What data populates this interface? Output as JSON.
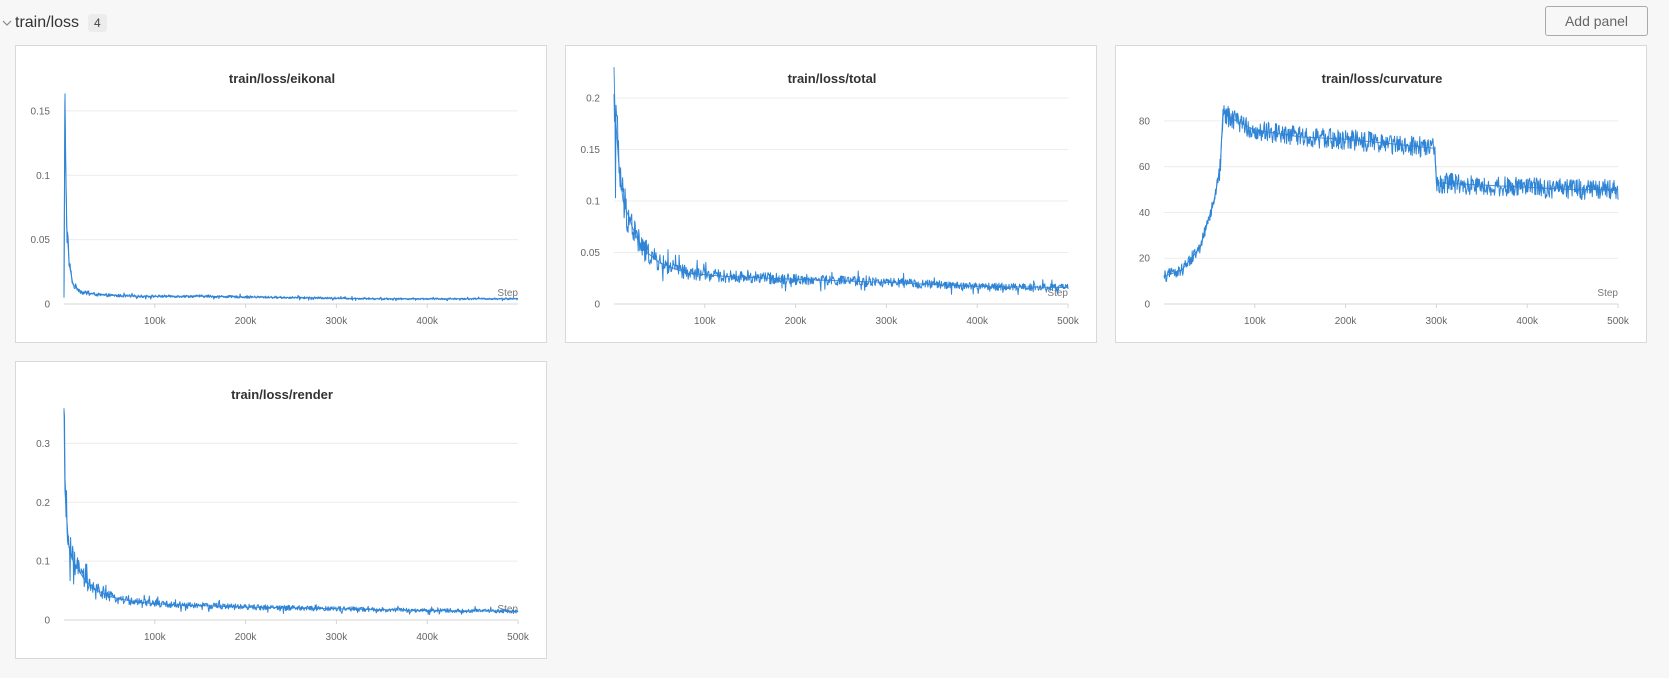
{
  "section": {
    "title": "train/loss",
    "count": "4",
    "add_panel_label": "Add panel"
  },
  "colors": {
    "series": "#2f84d6"
  },
  "chart_data": [
    {
      "type": "line",
      "title": "train/loss/eikonal",
      "xlabel": "Step",
      "xlim": [
        0,
        500000
      ],
      "ylim": [
        0,
        0.16
      ],
      "xticks": [
        100000,
        200000,
        300000,
        400000
      ],
      "xtick_labels": [
        "100k",
        "200k",
        "300k",
        "400k"
      ],
      "yticks": [
        0,
        0.05,
        0.1,
        0.15
      ],
      "ytick_labels": [
        "0",
        "0.05",
        "0.1",
        "0.15"
      ],
      "grid": true,
      "series": [
        {
          "x": [
            0,
            1000,
            3000,
            6000,
            10000,
            20000,
            40000,
            80000,
            150000,
            250000,
            350000,
            450000,
            500000
          ],
          "y": [
            0.005,
            0.158,
            0.06,
            0.03,
            0.015,
            0.009,
            0.007,
            0.006,
            0.006,
            0.005,
            0.004,
            0.004,
            0.004
          ]
        }
      ]
    },
    {
      "type": "line",
      "title": "train/loss/total",
      "xlabel": "Step",
      "xlim": [
        0,
        500000
      ],
      "ylim": [
        0,
        0.2
      ],
      "xticks": [
        100000,
        200000,
        300000,
        400000,
        500000
      ],
      "xtick_labels": [
        "100k",
        "200k",
        "300k",
        "400k",
        "500k"
      ],
      "yticks": [
        0,
        0.05,
        0.1,
        0.15,
        0.2
      ],
      "ytick_labels": [
        "0",
        "0.05",
        "0.1",
        "0.15",
        "0.2"
      ],
      "grid": true,
      "series": [
        {
          "x": [
            0,
            1000,
            5000,
            10000,
            20000,
            30000,
            50000,
            80000,
            120000,
            200000,
            300000,
            400000,
            500000
          ],
          "y": [
            0.23,
            0.19,
            0.14,
            0.1,
            0.075,
            0.055,
            0.04,
            0.03,
            0.027,
            0.024,
            0.021,
            0.017,
            0.016
          ]
        }
      ]
    },
    {
      "type": "line",
      "title": "train/loss/curvature",
      "xlabel": "Step",
      "xlim": [
        0,
        500000
      ],
      "ylim": [
        0,
        90
      ],
      "xticks": [
        100000,
        200000,
        300000,
        400000,
        500000
      ],
      "xtick_labels": [
        "100k",
        "200k",
        "300k",
        "400k",
        "500k"
      ],
      "yticks": [
        0,
        20,
        40,
        60,
        80
      ],
      "ytick_labels": [
        "0",
        "20",
        "40",
        "60",
        "80"
      ],
      "grid": true,
      "series": [
        {
          "x": [
            0,
            20000,
            40000,
            55000,
            62000,
            65000,
            70000,
            80000,
            100000,
            150000,
            200000,
            250000,
            298000,
            300000,
            350000,
            400000,
            450000,
            500000
          ],
          "y": [
            12,
            15,
            25,
            45,
            60,
            85,
            82,
            80,
            76,
            73,
            72,
            70,
            68,
            53,
            52,
            51,
            50,
            50
          ]
        }
      ]
    },
    {
      "type": "line",
      "title": "train/loss/render",
      "xlabel": "Step",
      "xlim": [
        0,
        500000
      ],
      "ylim": [
        0,
        0.35
      ],
      "xticks": [
        100000,
        200000,
        300000,
        400000,
        500000
      ],
      "xtick_labels": [
        "100k",
        "200k",
        "300k",
        "400k",
        "500k"
      ],
      "yticks": [
        0,
        0.1,
        0.2,
        0.3
      ],
      "ytick_labels": [
        "0",
        "0.1",
        "0.2",
        "0.3"
      ],
      "grid": true,
      "series": [
        {
          "x": [
            0,
            1000,
            5000,
            10000,
            20000,
            30000,
            50000,
            80000,
            120000,
            200000,
            300000,
            400000,
            500000
          ],
          "y": [
            0.36,
            0.22,
            0.13,
            0.1,
            0.075,
            0.055,
            0.04,
            0.03,
            0.026,
            0.022,
            0.019,
            0.016,
            0.015
          ]
        }
      ]
    }
  ]
}
